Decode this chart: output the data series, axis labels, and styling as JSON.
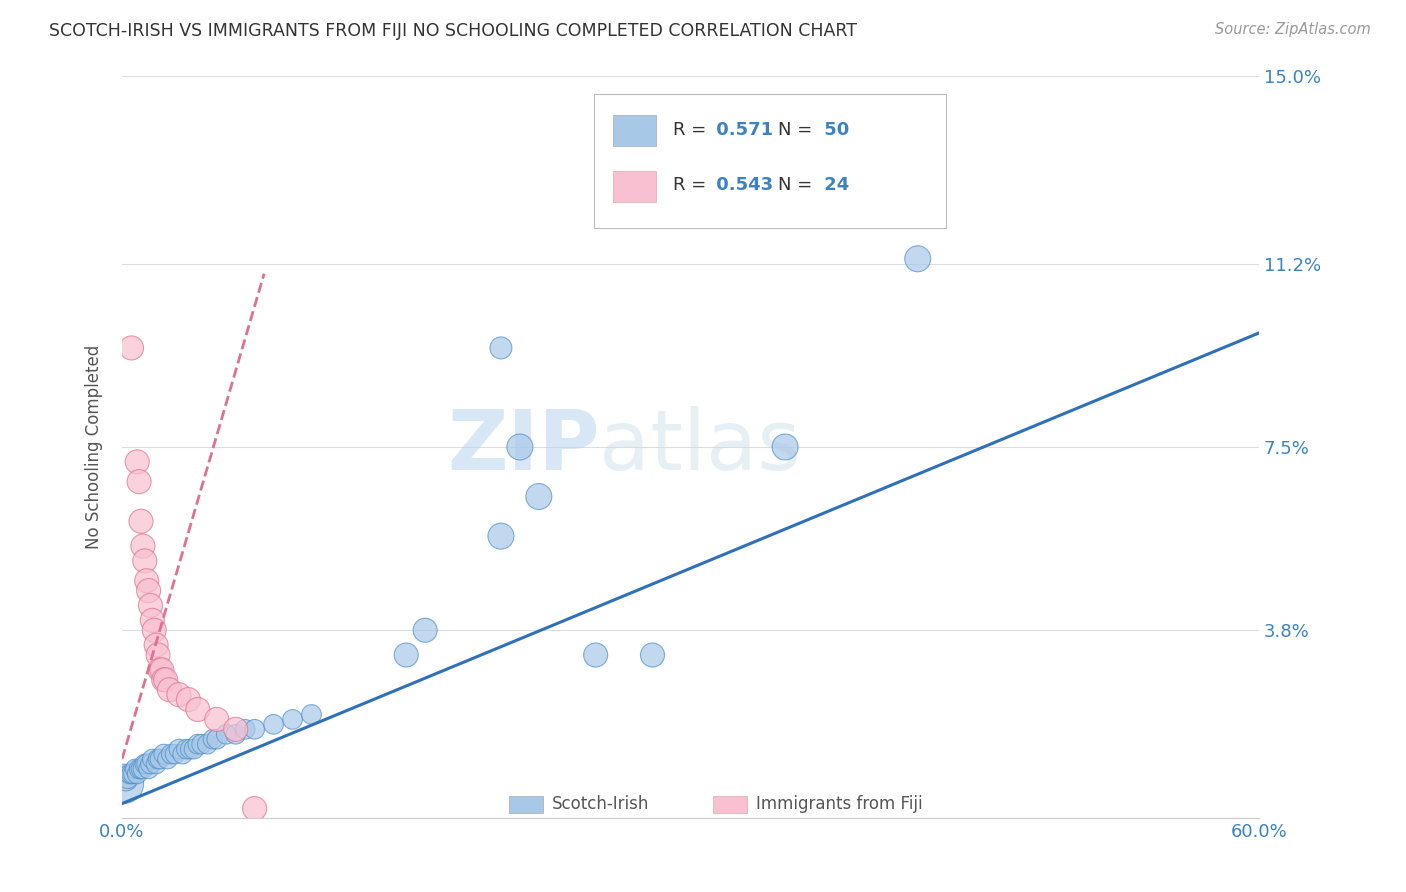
{
  "title": "SCOTCH-IRISH VS IMMIGRANTS FROM FIJI NO SCHOOLING COMPLETED CORRELATION CHART",
  "source": "Source: ZipAtlas.com",
  "ylabel": "No Schooling Completed",
  "watermark_zip": "ZIP",
  "watermark_atlas": "atlas",
  "xlim": [
    0.0,
    0.6
  ],
  "ylim": [
    0.0,
    0.15
  ],
  "xticks": [
    0.0,
    0.12,
    0.24,
    0.36,
    0.48,
    0.6
  ],
  "xticklabels": [
    "0.0%",
    "",
    "",
    "",
    "",
    "60.0%"
  ],
  "yticks": [
    0.0,
    0.038,
    0.075,
    0.112,
    0.15
  ],
  "yticklabels_right": [
    "",
    "3.8%",
    "7.5%",
    "11.2%",
    "15.0%"
  ],
  "blue_R": "0.571",
  "blue_N": "50",
  "pink_R": "0.543",
  "pink_N": "24",
  "blue_color": "#a8c8e8",
  "pink_color": "#f8c0d0",
  "blue_edge_color": "#5090c8",
  "pink_edge_color": "#e07090",
  "blue_line_color": "#3070b8",
  "pink_line_color": "#e07090",
  "tick_label_color": "#3b82c4",
  "grid_color": "#dddddd",
  "background_color": "#ffffff",
  "scotch_irish_points": [
    [
      0.001,
      0.007
    ],
    [
      0.002,
      0.008
    ],
    [
      0.003,
      0.008
    ],
    [
      0.004,
      0.009
    ],
    [
      0.005,
      0.009
    ],
    [
      0.006,
      0.009
    ],
    [
      0.007,
      0.01
    ],
    [
      0.008,
      0.009
    ],
    [
      0.009,
      0.01
    ],
    [
      0.01,
      0.01
    ],
    [
      0.011,
      0.01
    ],
    [
      0.012,
      0.011
    ],
    [
      0.013,
      0.011
    ],
    [
      0.014,
      0.01
    ],
    [
      0.015,
      0.011
    ],
    [
      0.016,
      0.012
    ],
    [
      0.018,
      0.011
    ],
    [
      0.019,
      0.012
    ],
    [
      0.02,
      0.012
    ],
    [
      0.022,
      0.013
    ],
    [
      0.024,
      0.012
    ],
    [
      0.026,
      0.013
    ],
    [
      0.028,
      0.013
    ],
    [
      0.03,
      0.014
    ],
    [
      0.032,
      0.013
    ],
    [
      0.034,
      0.014
    ],
    [
      0.036,
      0.014
    ],
    [
      0.038,
      0.014
    ],
    [
      0.04,
      0.015
    ],
    [
      0.042,
      0.015
    ],
    [
      0.045,
      0.015
    ],
    [
      0.048,
      0.016
    ],
    [
      0.05,
      0.016
    ],
    [
      0.055,
      0.017
    ],
    [
      0.06,
      0.017
    ],
    [
      0.065,
      0.018
    ],
    [
      0.07,
      0.018
    ],
    [
      0.08,
      0.019
    ],
    [
      0.09,
      0.02
    ],
    [
      0.1,
      0.021
    ],
    [
      0.15,
      0.033
    ],
    [
      0.16,
      0.038
    ],
    [
      0.2,
      0.057
    ],
    [
      0.21,
      0.075
    ],
    [
      0.22,
      0.065
    ],
    [
      0.25,
      0.033
    ],
    [
      0.28,
      0.033
    ],
    [
      0.35,
      0.075
    ],
    [
      0.42,
      0.113
    ],
    [
      0.2,
      0.095
    ]
  ],
  "scotch_irish_sizes": [
    800,
    300,
    200,
    200,
    200,
    200,
    200,
    200,
    200,
    200,
    200,
    200,
    200,
    200,
    200,
    200,
    200,
    200,
    200,
    200,
    200,
    200,
    200,
    200,
    200,
    200,
    200,
    200,
    200,
    200,
    200,
    200,
    200,
    200,
    200,
    200,
    200,
    200,
    200,
    200,
    300,
    300,
    350,
    350,
    350,
    300,
    300,
    350,
    350,
    250
  ],
  "fiji_points": [
    [
      0.005,
      0.095
    ],
    [
      0.008,
      0.072
    ],
    [
      0.009,
      0.068
    ],
    [
      0.01,
      0.06
    ],
    [
      0.011,
      0.055
    ],
    [
      0.012,
      0.052
    ],
    [
      0.013,
      0.048
    ],
    [
      0.014,
      0.046
    ],
    [
      0.015,
      0.043
    ],
    [
      0.016,
      0.04
    ],
    [
      0.017,
      0.038
    ],
    [
      0.018,
      0.035
    ],
    [
      0.019,
      0.033
    ],
    [
      0.02,
      0.03
    ],
    [
      0.021,
      0.03
    ],
    [
      0.022,
      0.028
    ],
    [
      0.023,
      0.028
    ],
    [
      0.025,
      0.026
    ],
    [
      0.03,
      0.025
    ],
    [
      0.035,
      0.024
    ],
    [
      0.04,
      0.022
    ],
    [
      0.05,
      0.02
    ],
    [
      0.06,
      0.018
    ],
    [
      0.07,
      0.002
    ]
  ],
  "fiji_sizes": [
    300,
    300,
    300,
    300,
    300,
    300,
    300,
    300,
    300,
    300,
    300,
    300,
    300,
    300,
    300,
    300,
    300,
    300,
    300,
    300,
    300,
    300,
    300,
    300
  ],
  "blue_line_x": [
    0.0,
    0.6
  ],
  "blue_line_y": [
    0.003,
    0.098
  ],
  "pink_line_x": [
    0.0,
    0.075
  ],
  "pink_line_y": [
    0.012,
    0.11
  ]
}
